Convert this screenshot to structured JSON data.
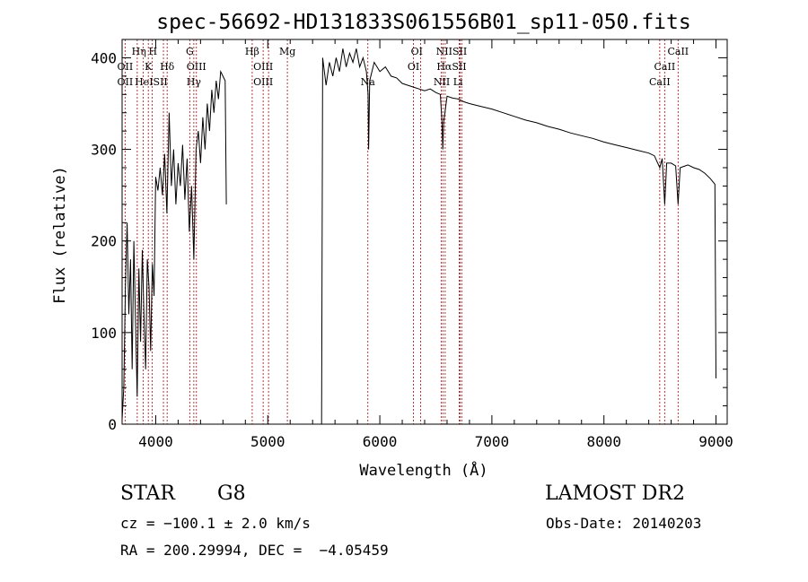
{
  "chart_data": {
    "type": "line",
    "title": "spec-56692-HD131833S061556B01_sp11-050.fits",
    "xlabel": "Wavelength (Å)",
    "ylabel": "Flux (relative)",
    "xlim": [
      3700,
      9100
    ],
    "ylim": [
      0,
      420
    ],
    "xticks": [
      4000,
      5000,
      6000,
      7000,
      8000,
      9000
    ],
    "yticks": [
      0,
      100,
      200,
      300,
      400
    ],
    "grid": false,
    "series": [
      {
        "values": [
          [
            3700,
            5
          ],
          [
            3715,
            40
          ],
          [
            3730,
            150
          ],
          [
            3745,
            220
          ],
          [
            3760,
            120
          ],
          [
            3775,
            180
          ],
          [
            3790,
            60
          ],
          [
            3805,
            200
          ],
          [
            3820,
            110
          ],
          [
            3835,
            30
          ],
          [
            3850,
            170
          ],
          [
            3865,
            90
          ],
          [
            3880,
            190
          ],
          [
            3895,
            120
          ],
          [
            3910,
            60
          ],
          [
            3925,
            180
          ],
          [
            3940,
            150
          ],
          [
            3955,
            80
          ],
          [
            3970,
            175
          ],
          [
            3985,
            140
          ],
          [
            4000,
            270
          ],
          [
            4020,
            255
          ],
          [
            4040,
            280
          ],
          [
            4060,
            250
          ],
          [
            4080,
            295
          ],
          [
            4100,
            230
          ],
          [
            4120,
            340
          ],
          [
            4140,
            260
          ],
          [
            4160,
            300
          ],
          [
            4180,
            240
          ],
          [
            4200,
            285
          ],
          [
            4220,
            260
          ],
          [
            4240,
            305
          ],
          [
            4260,
            245
          ],
          [
            4280,
            290
          ],
          [
            4300,
            210
          ],
          [
            4320,
            260
          ],
          [
            4340,
            180
          ],
          [
            4360,
            300
          ],
          [
            4380,
            320
          ],
          [
            4400,
            285
          ],
          [
            4420,
            335
          ],
          [
            4440,
            300
          ],
          [
            4460,
            350
          ],
          [
            4480,
            320
          ],
          [
            4500,
            365
          ],
          [
            4520,
            340
          ],
          [
            4540,
            375
          ],
          [
            4560,
            355
          ],
          [
            4580,
            385
          ],
          [
            4600,
            380
          ],
          [
            4620,
            375
          ],
          [
            4630,
            240
          ],
          [
            4640,
            null
          ],
          [
            5470,
            null
          ],
          [
            5480,
            0
          ],
          [
            5490,
            400
          ],
          [
            5520,
            370
          ],
          [
            5550,
            395
          ],
          [
            5580,
            380
          ],
          [
            5610,
            400
          ],
          [
            5640,
            385
          ],
          [
            5670,
            410
          ],
          [
            5700,
            390
          ],
          [
            5730,
            405
          ],
          [
            5760,
            395
          ],
          [
            5790,
            410
          ],
          [
            5820,
            390
          ],
          [
            5850,
            400
          ],
          [
            5880,
            385
          ],
          [
            5895,
            360
          ],
          [
            5900,
            300
          ],
          [
            5910,
            375
          ],
          [
            5950,
            395
          ],
          [
            6000,
            385
          ],
          [
            6050,
            390
          ],
          [
            6100,
            380
          ],
          [
            6150,
            378
          ],
          [
            6200,
            372
          ],
          [
            6250,
            370
          ],
          [
            6300,
            368
          ],
          [
            6350,
            366
          ],
          [
            6400,
            364
          ],
          [
            6450,
            366
          ],
          [
            6500,
            362
          ],
          [
            6540,
            360
          ],
          [
            6555,
            330
          ],
          [
            6562,
            300
          ],
          [
            6570,
            330
          ],
          [
            6600,
            358
          ],
          [
            6650,
            356
          ],
          [
            6700,
            355
          ],
          [
            6750,
            352
          ],
          [
            6800,
            350
          ],
          [
            6900,
            347
          ],
          [
            7000,
            344
          ],
          [
            7100,
            340
          ],
          [
            7200,
            336
          ],
          [
            7300,
            332
          ],
          [
            7400,
            329
          ],
          [
            7500,
            325
          ],
          [
            7600,
            322
          ],
          [
            7700,
            318
          ],
          [
            7800,
            315
          ],
          [
            7900,
            312
          ],
          [
            8000,
            308
          ],
          [
            8100,
            305
          ],
          [
            8200,
            302
          ],
          [
            8300,
            299
          ],
          [
            8400,
            296
          ],
          [
            8450,
            293
          ],
          [
            8498,
            280
          ],
          [
            8520,
            290
          ],
          [
            8542,
            240
          ],
          [
            8560,
            285
          ],
          [
            8600,
            285
          ],
          [
            8640,
            282
          ],
          [
            8662,
            240
          ],
          [
            8680,
            280
          ],
          [
            8750,
            283
          ],
          [
            8800,
            280
          ],
          [
            8850,
            278
          ],
          [
            8900,
            274
          ],
          [
            8950,
            268
          ],
          [
            8990,
            262
          ],
          [
            9000,
            50
          ]
        ]
      }
    ],
    "line_markers": [
      {
        "wavelength": 3727,
        "labels": [
          "OII"
        ]
      },
      {
        "wavelength": 3835,
        "labels": [
          "Hη"
        ]
      },
      {
        "wavelength": 3889,
        "labels": [
          "HeI"
        ]
      },
      {
        "wavelength": 3934,
        "labels": [
          "K"
        ]
      },
      {
        "wavelength": 3969,
        "labels": [
          "H"
        ]
      },
      {
        "wavelength": 4069,
        "labels": [
          "SII"
        ]
      },
      {
        "wavelength": 4102,
        "labels": [
          "Hδ"
        ]
      },
      {
        "wavelength": 4304,
        "labels": [
          "G"
        ]
      },
      {
        "wavelength": 4340,
        "labels": [
          "Hγ"
        ]
      },
      {
        "wavelength": 4363,
        "labels": [
          "OIII"
        ]
      },
      {
        "wavelength": 4861,
        "labels": [
          "Hβ"
        ]
      },
      {
        "wavelength": 4959,
        "labels": [
          "OIII"
        ]
      },
      {
        "wavelength": 5007,
        "labels": [
          "OIII"
        ]
      },
      {
        "wavelength": 5175,
        "labels": [
          "Mg"
        ]
      },
      {
        "wavelength": 5893,
        "labels": [
          "Na"
        ]
      },
      {
        "wavelength": 6300,
        "labels": [
          "OI"
        ]
      },
      {
        "wavelength": 6364,
        "labels": [
          "OI"
        ]
      },
      {
        "wavelength": 6548,
        "labels": [
          "NII"
        ]
      },
      {
        "wavelength": 6563,
        "labels": [
          "Hα"
        ]
      },
      {
        "wavelength": 6583,
        "labels": [
          "NII"
        ]
      },
      {
        "wavelength": 6708,
        "labels": [
          "Li"
        ]
      },
      {
        "wavelength": 6717,
        "labels": [
          "SII"
        ]
      },
      {
        "wavelength": 6731,
        "labels": [
          "SII"
        ]
      },
      {
        "wavelength": 8498,
        "labels": [
          "CaII"
        ]
      },
      {
        "wavelength": 8542,
        "labels": [
          "CaII"
        ]
      },
      {
        "wavelength": 8662,
        "labels": [
          "CaII"
        ]
      }
    ],
    "line_label_rows": [
      [
        {
          "text": "Hη",
          "x": 3850
        },
        {
          "text": "H",
          "x": 3975
        },
        {
          "text": "G",
          "x": 4304
        },
        {
          "text": "Hβ",
          "x": 4861
        },
        {
          "text": "Mg",
          "x": 5175
        },
        {
          "text": "OI",
          "x": 6330
        },
        {
          "text": "NIISII",
          "x": 6640
        },
        {
          "text": "CaII",
          "x": 8662
        }
      ],
      [
        {
          "text": "OII",
          "x": 3727
        },
        {
          "text": "K",
          "x": 3934
        },
        {
          "text": "Hδ",
          "x": 4102
        },
        {
          "text": "OIII",
          "x": 4363
        },
        {
          "text": "OIII",
          "x": 4959
        },
        {
          "text": "OI",
          "x": 6300
        },
        {
          "text": "HαSII",
          "x": 6640
        },
        {
          "text": "CaII",
          "x": 8542
        }
      ],
      [
        {
          "text": "OII",
          "x": 3727
        },
        {
          "text": "HeISII",
          "x": 3960
        },
        {
          "text": "Hγ",
          "x": 4340
        },
        {
          "text": "OIII",
          "x": 4959
        },
        {
          "text": "Na",
          "x": 5893
        },
        {
          "text": "NII Li",
          "x": 6610
        },
        {
          "text": "CaII",
          "x": 8498
        }
      ]
    ]
  },
  "info": {
    "object_class": "STAR",
    "subclass": "G8",
    "survey": "LAMOST DR2",
    "redshift": "cz = −100.1 ± 2.0 km/s",
    "obs_date": "Obs-Date: 20140203",
    "coords": "RA = 200.29994, DEC =  −4.05459"
  }
}
